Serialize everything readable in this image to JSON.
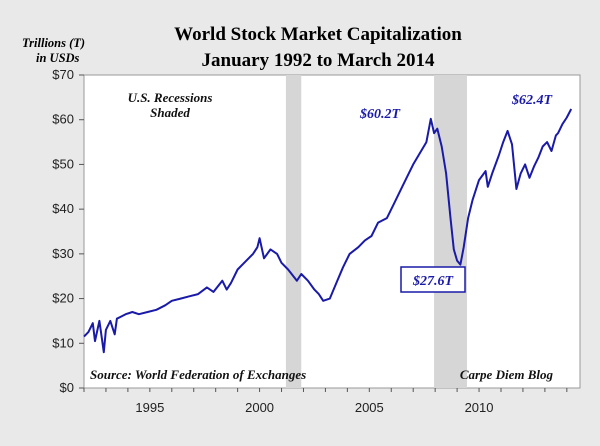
{
  "chart_data": {
    "type": "line",
    "title": "World Stock Market Capitalization",
    "subtitle": "January 1992 to March 2014",
    "ylabel_line1": "Trillions (T)",
    "ylabel_line2": "in USDs",
    "xlabel": "",
    "xlim": [
      1992.0,
      2014.6
    ],
    "ylim": [
      0,
      70
    ],
    "yticks": [
      0,
      10,
      20,
      30,
      40,
      50,
      60,
      70
    ],
    "ytick_labels": [
      "$0",
      "$10",
      "$20",
      "$30",
      "$40",
      "$50",
      "$60",
      "$70"
    ],
    "xticks": [
      1995,
      2000,
      2005,
      2010
    ],
    "xtick_labels": [
      "1995",
      "2000",
      "2005",
      "2010"
    ],
    "line_color": "#1a1aa8",
    "recession_color": "#d6d6d6",
    "recessions": [
      {
        "start": 2001.2,
        "end": 2001.9
      },
      {
        "start": 2007.95,
        "end": 2009.45
      }
    ],
    "series": [
      {
        "name": "World Stock Market Capitalization",
        "x": [
          1992.0,
          1992.2,
          1992.4,
          1992.5,
          1992.7,
          1992.9,
          1993.0,
          1993.2,
          1993.4,
          1993.5,
          1993.7,
          1993.9,
          1994.2,
          1994.5,
          1994.9,
          1995.3,
          1995.7,
          1996.0,
          1996.4,
          1996.8,
          1997.2,
          1997.6,
          1997.9,
          1998.3,
          1998.5,
          1998.7,
          1999.0,
          1999.3,
          1999.7,
          1999.9,
          2000.0,
          2000.2,
          2000.5,
          2000.8,
          2001.0,
          2001.3,
          2001.7,
          2001.9,
          2002.2,
          2002.5,
          2002.7,
          2002.9,
          2003.2,
          2003.5,
          2003.8,
          2004.1,
          2004.5,
          2004.8,
          2005.1,
          2005.4,
          2005.8,
          2006.1,
          2006.4,
          2006.7,
          2007.0,
          2007.3,
          2007.6,
          2007.8,
          2007.95,
          2008.1,
          2008.3,
          2008.5,
          2008.7,
          2008.85,
          2009.0,
          2009.15,
          2009.3,
          2009.5,
          2009.7,
          2010.0,
          2010.3,
          2010.4,
          2010.6,
          2010.9,
          2011.1,
          2011.3,
          2011.5,
          2011.7,
          2011.9,
          2012.1,
          2012.3,
          2012.5,
          2012.7,
          2012.9,
          2013.1,
          2013.3,
          2013.5,
          2013.6,
          2013.8,
          2014.0,
          2014.2
        ],
        "y": [
          11.5,
          12.5,
          14.5,
          10.5,
          15.0,
          8.0,
          13.0,
          15.0,
          12.0,
          15.5,
          16.0,
          16.5,
          17.0,
          16.5,
          17.0,
          17.5,
          18.5,
          19.5,
          20.0,
          20.5,
          21.0,
          22.5,
          21.5,
          24.0,
          22.0,
          23.5,
          26.5,
          28.0,
          30.0,
          31.5,
          33.5,
          29.0,
          31.0,
          30.0,
          28.0,
          26.5,
          24.0,
          25.5,
          24.0,
          22.0,
          21.0,
          19.5,
          20.0,
          23.5,
          27.0,
          30.0,
          31.5,
          33.0,
          34.0,
          37.0,
          38.0,
          41.0,
          44.0,
          47.0,
          50.0,
          52.5,
          55.0,
          60.2,
          57.0,
          58.0,
          54.0,
          48.0,
          38.0,
          31.0,
          28.5,
          27.6,
          31.5,
          38.0,
          42.0,
          46.5,
          48.5,
          45.0,
          48.0,
          52.0,
          55.0,
          57.5,
          54.5,
          44.5,
          48.0,
          50.0,
          47.0,
          49.5,
          51.5,
          54.0,
          55.0,
          53.0,
          56.5,
          57.0,
          59.0,
          60.5,
          62.4
        ]
      }
    ],
    "annotations": [
      {
        "text": "U.S. Recessions",
        "style": "italic-bold"
      },
      {
        "text": "Shaded",
        "style": "italic-bold"
      },
      {
        "text": "$60.2T",
        "x": 2007.8,
        "y": 60.2
      },
      {
        "text": "$62.4T",
        "x": 2014.2,
        "y": 62.4
      },
      {
        "text": "$27.6T",
        "x": 2009.15,
        "y": 27.6,
        "boxed": true
      }
    ],
    "source_text": "Source: World Federation of Exchanges",
    "credit_text": "Carpe Diem Blog"
  }
}
